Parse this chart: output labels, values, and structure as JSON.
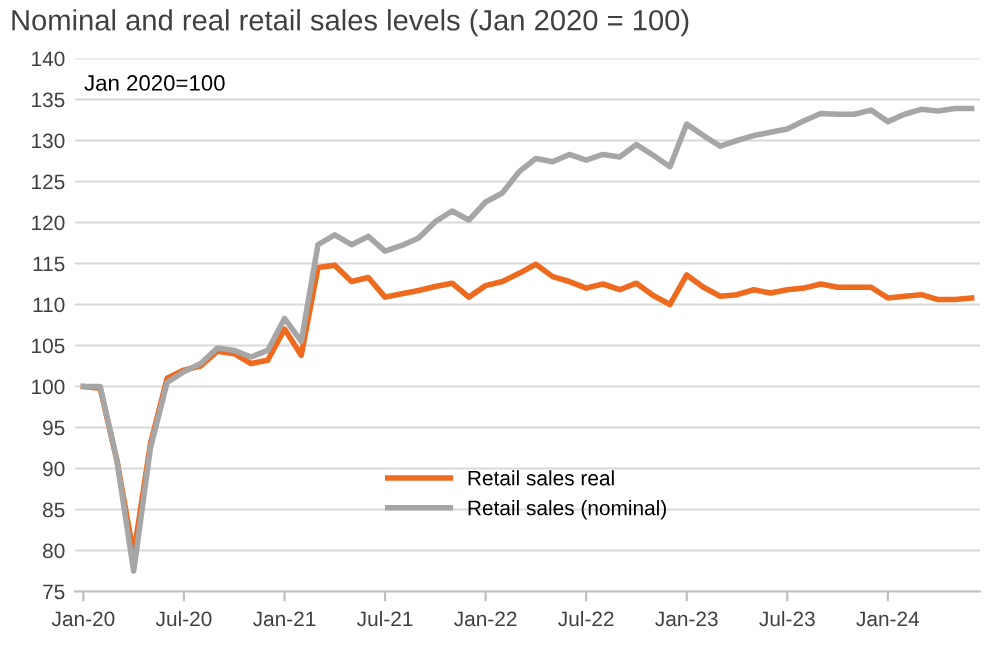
{
  "chart_data": {
    "type": "line",
    "title": "Nominal and real retail sales levels (Jan 2020 = 100)",
    "annotations": [
      "Jan 2020=100"
    ],
    "categories": [
      "Jan-20",
      null,
      null,
      null,
      null,
      null,
      "Jul-20",
      null,
      null,
      null,
      null,
      null,
      "Jan-21",
      null,
      null,
      null,
      null,
      null,
      "Jul-21",
      null,
      null,
      null,
      null,
      null,
      "Jan-22",
      null,
      null,
      null,
      null,
      null,
      "Jul-22",
      null,
      null,
      null,
      null,
      null,
      "Jan-23",
      null,
      null,
      null,
      null,
      null,
      "Jul-23",
      null,
      null,
      null,
      null,
      null,
      "Jan-24",
      null,
      null,
      null,
      null,
      null
    ],
    "series": [
      {
        "name": "Retail sales real",
        "color": "#ee6a1f",
        "values": [
          100,
          99.8,
          91,
          79.5,
          93,
          101,
          102,
          102.5,
          104.3,
          104,
          102.8,
          103.2,
          107,
          103.8,
          114.5,
          114.8,
          112.8,
          113.3,
          110.9,
          111.3,
          111.7,
          112.2,
          112.6,
          110.9,
          112.3,
          112.8,
          113.8,
          114.9,
          113.4,
          112.8,
          112,
          112.5,
          111.8,
          112.6,
          111.1,
          110,
          113.6,
          112.1,
          111,
          111.2,
          111.8,
          111.4,
          111.8,
          112,
          112.5,
          112.1,
          112.1,
          112.1,
          110.8,
          111,
          111.2,
          110.6,
          110.6,
          110.8
        ]
      },
      {
        "name": "Retail sales (nominal)",
        "color": "#a6a6a6",
        "values": [
          100,
          100,
          91,
          77.5,
          92.5,
          100.5,
          101.8,
          102.8,
          104.7,
          104.4,
          103.6,
          104.4,
          108.3,
          105.5,
          117.3,
          118.5,
          117.3,
          118.3,
          116.5,
          117.2,
          118.1,
          120.1,
          121.4,
          120.3,
          122.5,
          123.6,
          126.2,
          127.8,
          127.4,
          128.3,
          127.6,
          128.3,
          128,
          129.5,
          128.2,
          126.8,
          132,
          130.6,
          129.3,
          130,
          130.6,
          131,
          131.4,
          132.4,
          133.3,
          133.2,
          133.2,
          133.7,
          132.3,
          133.2,
          133.8,
          133.6,
          133.9,
          133.9
        ]
      }
    ],
    "ylim": [
      75,
      140
    ],
    "yticks": [
      75,
      80,
      85,
      90,
      95,
      100,
      105,
      110,
      115,
      120,
      125,
      130,
      135,
      140
    ],
    "grid": "y",
    "legend": "bottom",
    "marker": "none",
    "line_style": "solid"
  }
}
